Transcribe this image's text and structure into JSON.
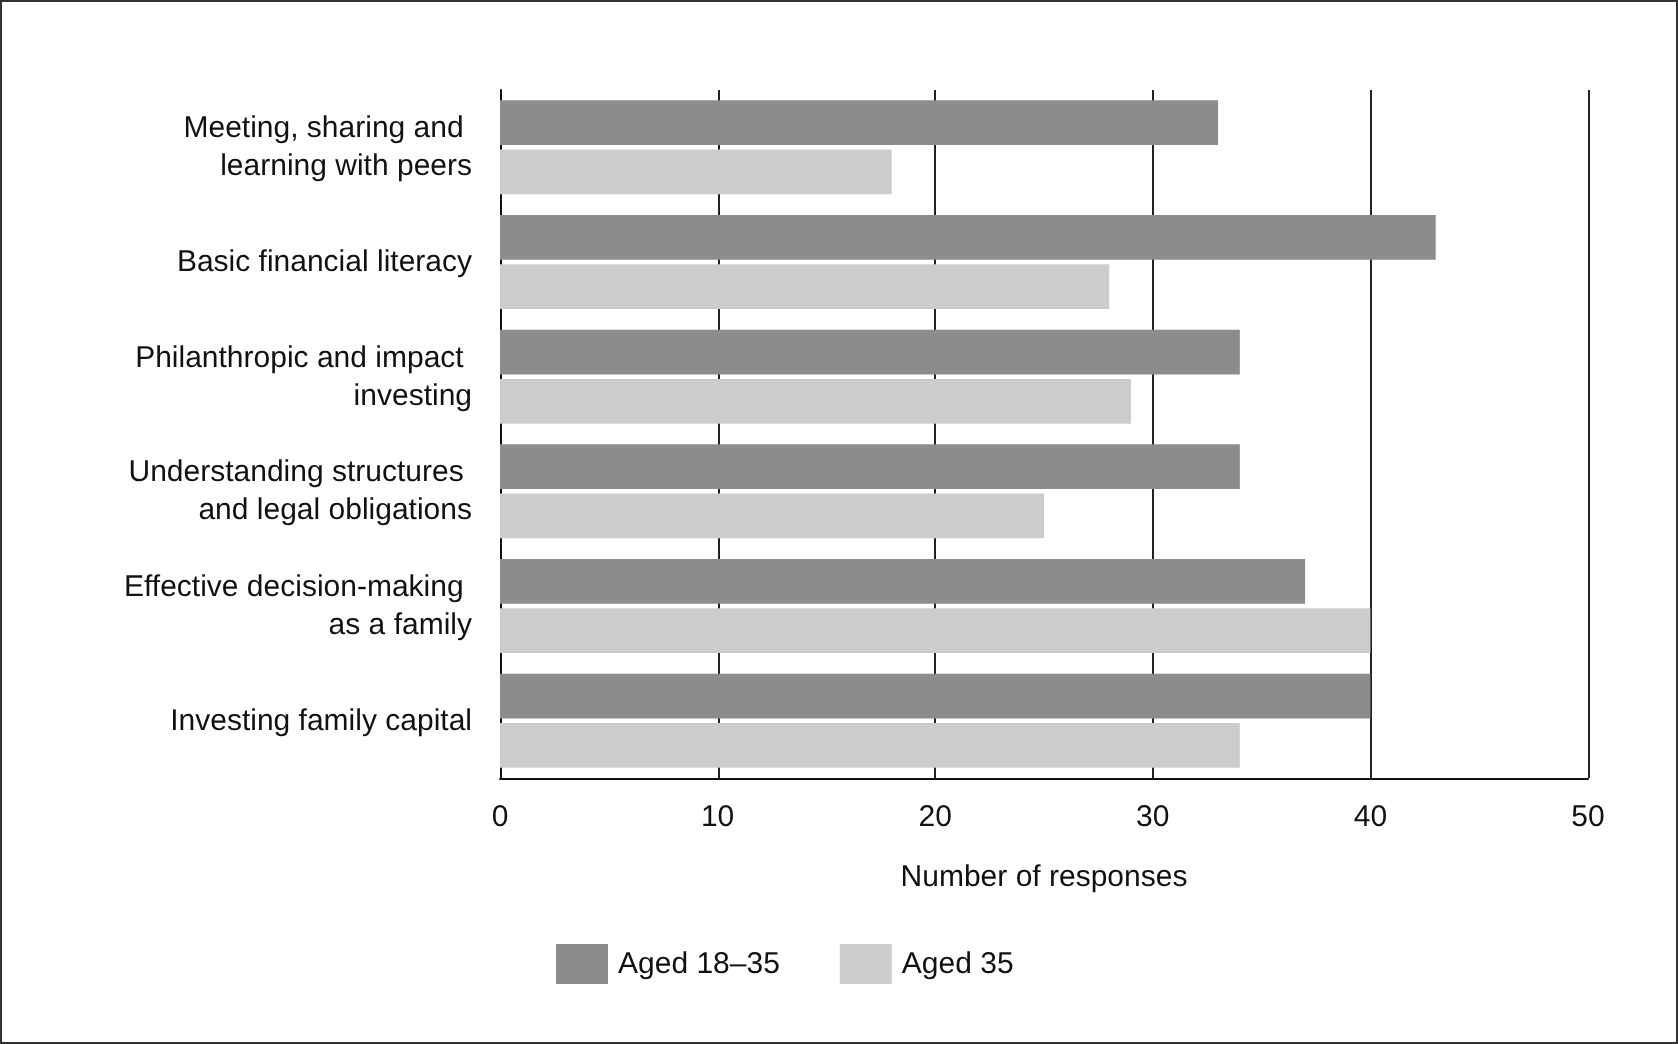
{
  "chart_data": {
    "type": "bar",
    "orientation": "horizontal",
    "xlabel": "Number of responses",
    "categories": [
      "Meeting, sharing and learning with peers",
      "Basic financial literacy",
      "Philanthropic and impact investing",
      "Understanding structures and legal obligations",
      "Effective decision-making as a family",
      "Investing family capital"
    ],
    "series": [
      {
        "name": "Aged 18–35",
        "color": "#8c8c8c",
        "values": [
          33,
          43,
          34,
          34,
          37,
          40
        ]
      },
      {
        "name": "Aged 35",
        "color": "#cccccc",
        "values": [
          18,
          28,
          29,
          25,
          40,
          34
        ]
      }
    ],
    "xlim": [
      0,
      50
    ],
    "xticks": [
      0,
      10,
      20,
      30,
      40,
      50
    ],
    "grid": "x",
    "legend": "bottom left"
  }
}
